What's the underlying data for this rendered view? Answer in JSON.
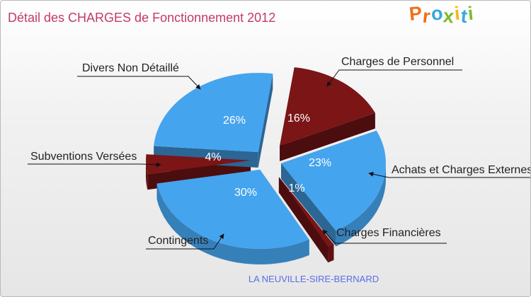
{
  "title": "Détail des CHARGES de Fonctionnement 2012",
  "logo": {
    "letters": [
      "P",
      "r",
      "o",
      "x",
      "i",
      "t",
      "i"
    ],
    "colors": [
      "#ee6f1b",
      "#ee6f1b",
      "#37a8e0",
      "#7cbb2c",
      "#f3b918",
      "#37a8e0",
      "#7cbb2c"
    ]
  },
  "footer": "LA NEUVILLE-SIRE-BERNARD",
  "chart_data": {
    "type": "pie",
    "style": "3d exploded",
    "title": "Détail des CHARGES de Fonctionnement 2012",
    "slices": [
      {
        "label": "Charges de Personnel",
        "value": 16,
        "display": "16%",
        "color": "#7b1516"
      },
      {
        "label": "Achats et Charges Externes",
        "value": 23,
        "display": "23%",
        "color": "#45a4ee"
      },
      {
        "label": "Charges Financières",
        "value": 1,
        "display": "1%",
        "color": "#7b1516"
      },
      {
        "label": "Contingents",
        "value": 30,
        "display": "30%",
        "color": "#45a4ee"
      },
      {
        "label": "Subventions Versées",
        "value": 4,
        "display": "4%",
        "color": "#7b1516"
      },
      {
        "label": "Divers Non Détaillé",
        "value": 26,
        "display": "26%",
        "color": "#45a4ee"
      }
    ]
  }
}
